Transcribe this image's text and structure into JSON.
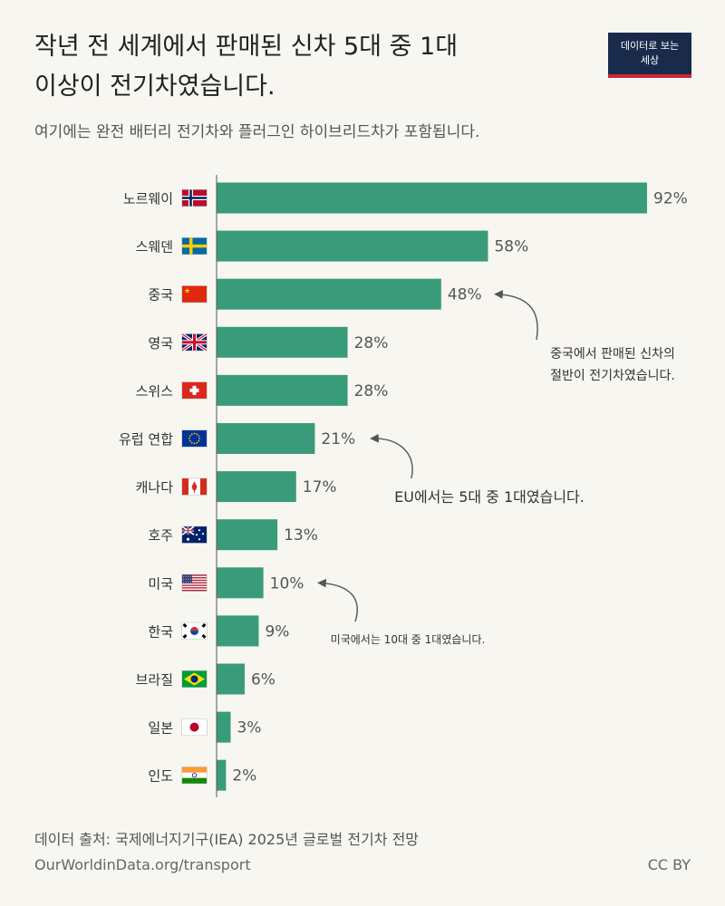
{
  "header": {
    "title_line1": "작년 전 세계에서 판매된 신차 5대 중 1대",
    "title_line2": "이상이 전기차였습니다.",
    "subtitle": "여기에는 완전 배터리 전기차와 플러그인 하이브리드차가 포함됩니다.",
    "logo_line1": "데이터로 보는",
    "logo_line2": "세상"
  },
  "footer": {
    "source": "데이터 출처: 국제에너지기구(IEA) 2025년 글로벌 전기차 전망",
    "url": "OurWorldinData.org/transport",
    "license": "CC BY"
  },
  "colors": {
    "bar": "#3a9b7a",
    "background": "#f7f6f1",
    "axis": "#555555",
    "annotation_arrow": "#555555"
  },
  "chart_data": {
    "type": "bar",
    "orientation": "horizontal",
    "unit": "%",
    "xlim": [
      0,
      100
    ],
    "categories": [
      "노르웨이",
      "스웨덴",
      "중국",
      "영국",
      "스위스",
      "유럽 연합",
      "캐나다",
      "호주",
      "미국",
      "한국",
      "브라질",
      "일본",
      "인도"
    ],
    "flags": [
      "norway-flag-icon",
      "sweden-flag-icon",
      "china-flag-icon",
      "uk-flag-icon",
      "switzerland-flag-icon",
      "eu-flag-icon",
      "canada-flag-icon",
      "australia-flag-icon",
      "usa-flag-icon",
      "south-korea-flag-icon",
      "brazil-flag-icon",
      "japan-flag-icon",
      "india-flag-icon"
    ],
    "values": [
      92,
      58,
      48,
      28,
      28,
      21,
      17,
      13,
      10,
      9,
      6,
      3,
      2
    ],
    "value_labels": [
      "92%",
      "58%",
      "48%",
      "28%",
      "28%",
      "21%",
      "17%",
      "13%",
      "10%",
      "9%",
      "6%",
      "3%",
      "2%"
    ],
    "annotations": [
      {
        "category": "중국",
        "lines": [
          "중국에서 판매된 신차의",
          "절반이 전기차였습니다."
        ]
      },
      {
        "category": "유럽 연합",
        "lines": [
          "EU에서는 5대 중 1대였습니다."
        ]
      },
      {
        "category": "미국",
        "lines": [
          "미국에서는 10대 중 1대였습니다."
        ]
      }
    ]
  }
}
